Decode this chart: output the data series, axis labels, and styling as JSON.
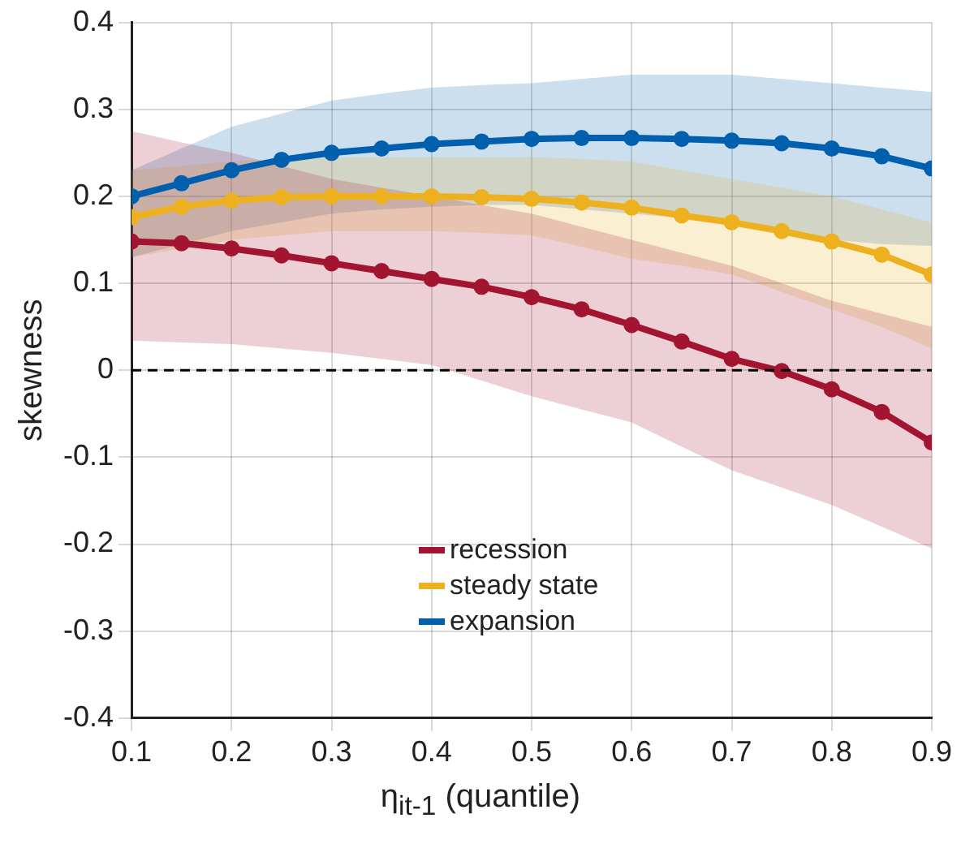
{
  "chart_data": {
    "type": "line",
    "ylabel": "skewness",
    "xlabel": "η$_{it-1}$ (quantile)",
    "x": [
      0.1,
      0.15,
      0.2,
      0.25,
      0.3,
      0.35,
      0.4,
      0.45,
      0.5,
      0.55,
      0.6,
      0.65,
      0.7,
      0.75,
      0.8,
      0.85,
      0.9
    ],
    "xlim": [
      0.1,
      0.9
    ],
    "xticks": [
      0.1,
      0.2,
      0.3,
      0.4,
      0.5,
      0.6,
      0.7,
      0.8,
      0.9
    ],
    "ylim": [
      -0.4,
      0.4
    ],
    "yticks": [
      -0.4,
      -0.3,
      -0.2,
      -0.1,
      0,
      0.1,
      0.2,
      0.3,
      0.4
    ],
    "grid": true,
    "legend": "bottom",
    "marker": "circle",
    "line_style": "solid",
    "ref_lines": [
      {
        "axis": "y",
        "value": 0,
        "color": "#000000",
        "line_style": "dashed"
      }
    ],
    "series": [
      {
        "name": "recession",
        "color": "#a2142f",
        "values": [
          0.148,
          0.146,
          0.14,
          0.132,
          0.123,
          0.114,
          0.105,
          0.096,
          0.084,
          0.07,
          0.052,
          0.033,
          0.013,
          -0.001,
          -0.022,
          -0.048,
          -0.083
        ],
        "lower": [
          0.034,
          0.032,
          0.03,
          0.025,
          0.02,
          0.013,
          0.006,
          -0.012,
          -0.03,
          -0.045,
          -0.06,
          -0.088,
          -0.115,
          -0.135,
          -0.155,
          -0.18,
          -0.205
        ],
        "upper": [
          0.275,
          0.262,
          0.25,
          0.235,
          0.22,
          0.21,
          0.2,
          0.19,
          0.18,
          0.165,
          0.15,
          0.135,
          0.12,
          0.1,
          0.08,
          0.065,
          0.05
        ]
      },
      {
        "name": "steady state",
        "color": "#edb120",
        "values": [
          0.176,
          0.188,
          0.195,
          0.199,
          0.2,
          0.2,
          0.2,
          0.199,
          0.197,
          0.193,
          0.187,
          0.178,
          0.17,
          0.16,
          0.148,
          0.133,
          0.11
        ],
        "lower": [
          0.13,
          0.14,
          0.15,
          0.155,
          0.16,
          0.16,
          0.16,
          0.158,
          0.155,
          0.142,
          0.128,
          0.12,
          0.11,
          0.09,
          0.07,
          0.05,
          0.025
        ],
        "upper": [
          0.23,
          0.235,
          0.24,
          0.243,
          0.245,
          0.245,
          0.245,
          0.245,
          0.245,
          0.243,
          0.24,
          0.23,
          0.22,
          0.21,
          0.2,
          0.185,
          0.17
        ]
      },
      {
        "name": "expansion",
        "color": "#0060ad",
        "values": [
          0.2,
          0.215,
          0.23,
          0.242,
          0.25,
          0.255,
          0.26,
          0.263,
          0.266,
          0.267,
          0.267,
          0.266,
          0.264,
          0.261,
          0.255,
          0.246,
          0.232
        ],
        "lower": [
          0.13,
          0.145,
          0.16,
          0.17,
          0.18,
          0.185,
          0.188,
          0.19,
          0.19,
          0.185,
          0.18,
          0.175,
          0.17,
          0.16,
          0.15,
          0.145,
          0.143
        ],
        "upper": [
          0.23,
          0.255,
          0.28,
          0.295,
          0.31,
          0.318,
          0.325,
          0.328,
          0.33,
          0.335,
          0.34,
          0.34,
          0.34,
          0.335,
          0.33,
          0.325,
          0.32
        ]
      }
    ]
  }
}
